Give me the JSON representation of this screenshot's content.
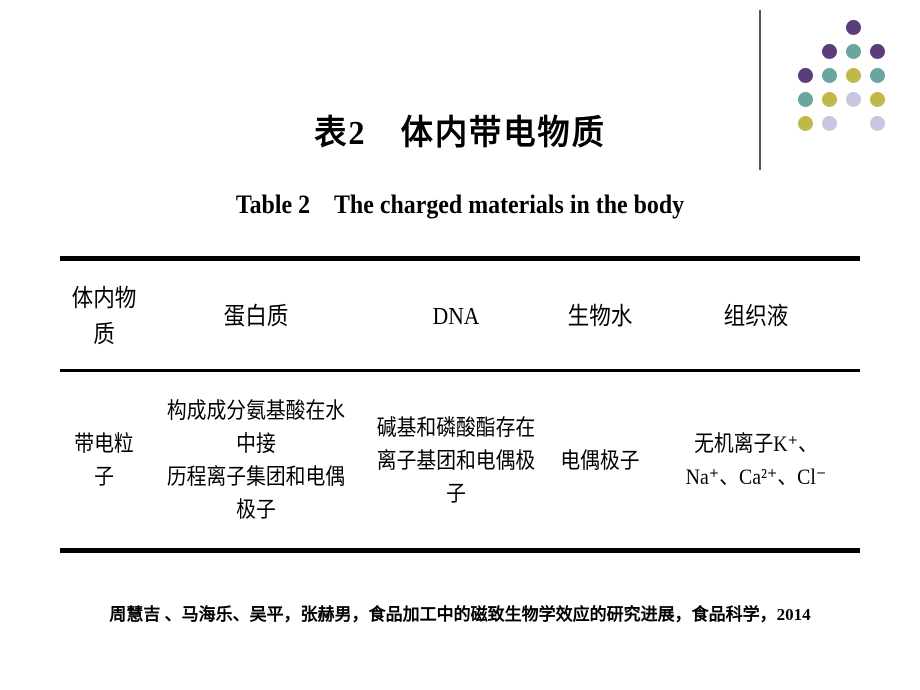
{
  "decor": {
    "vline_color": "#555555",
    "dot_rows": [
      [
        "#ffffff",
        "#ffffff",
        "#5a3d7a",
        "#ffffff"
      ],
      [
        "#ffffff",
        "#5a3d7a",
        "#6aa6a0",
        "#5a3d7a"
      ],
      [
        "#5a3d7a",
        "#6aa6a0",
        "#bfb84b",
        "#6aa6a0"
      ],
      [
        "#6aa6a0",
        "#bfb84b",
        "#c9c7e0",
        "#bfb84b"
      ],
      [
        "#bfb84b",
        "#c9c7e0",
        "#ffffff",
        "#c9c7e0"
      ]
    ]
  },
  "table": {
    "title_cn": "表2　体内带电物质",
    "title_en": "Table 2　The charged materials in the body",
    "headers": [
      "体内物质",
      "蛋白质",
      "DNA",
      "生物水",
      "组织液"
    ],
    "row_label": "带电粒子",
    "cells": [
      "构成成分氨基酸在水中接\n历程离子集团和电偶极子",
      "碱基和磷酸酯存在\n离子基团和电偶极子",
      "电偶极子",
      "无机离子K⁺、\nNa⁺、Ca²⁺、Cl⁻"
    ],
    "col_widths": [
      "11%",
      "27%",
      "23%",
      "13%",
      "26%"
    ],
    "border_color": "#000000",
    "text_color": "#000000",
    "header_fontsize": 24,
    "cell_fontsize": 22
  },
  "citation": "周慧吉 、马海乐、吴平，张赫男，食品加工中的磁致生物学效应的研究进展，食品科学，2014"
}
